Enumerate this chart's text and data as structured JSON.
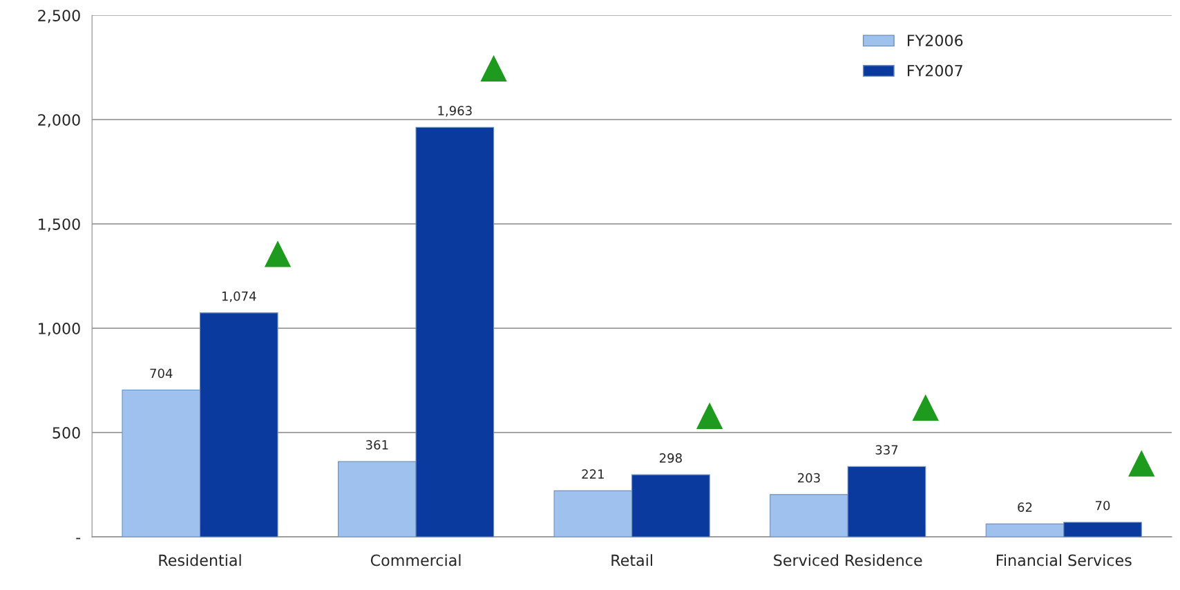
{
  "chart_data": {
    "type": "bar",
    "categories": [
      "Residential",
      "Commercial",
      "Retail",
      "Serviced Residence",
      "Financial Services"
    ],
    "series": [
      {
        "name": "FY2006",
        "color": "#9fc1ee",
        "values": [
          704,
          361,
          221,
          203,
          62
        ],
        "value_labels": [
          "704",
          "361",
          "221",
          "203",
          "62"
        ]
      },
      {
        "name": "FY2007",
        "color": "#0a3a9e",
        "values": [
          1074,
          1963,
          298,
          337,
          70
        ],
        "value_labels": [
          "1,074",
          "1,963",
          "298",
          "337",
          "70"
        ]
      }
    ],
    "ylim": [
      0,
      2500
    ],
    "yticks": [
      {
        "value": 0,
        "label": "-"
      },
      500,
      {
        "value": 1000,
        "label": "1,000"
      },
      {
        "value": 1500,
        "label": "1,500"
      },
      {
        "value": 2000,
        "label": "2,000"
      },
      {
        "value": 2500,
        "label": "2,500"
      }
    ],
    "grid": "y",
    "legend": "top right"
  }
}
